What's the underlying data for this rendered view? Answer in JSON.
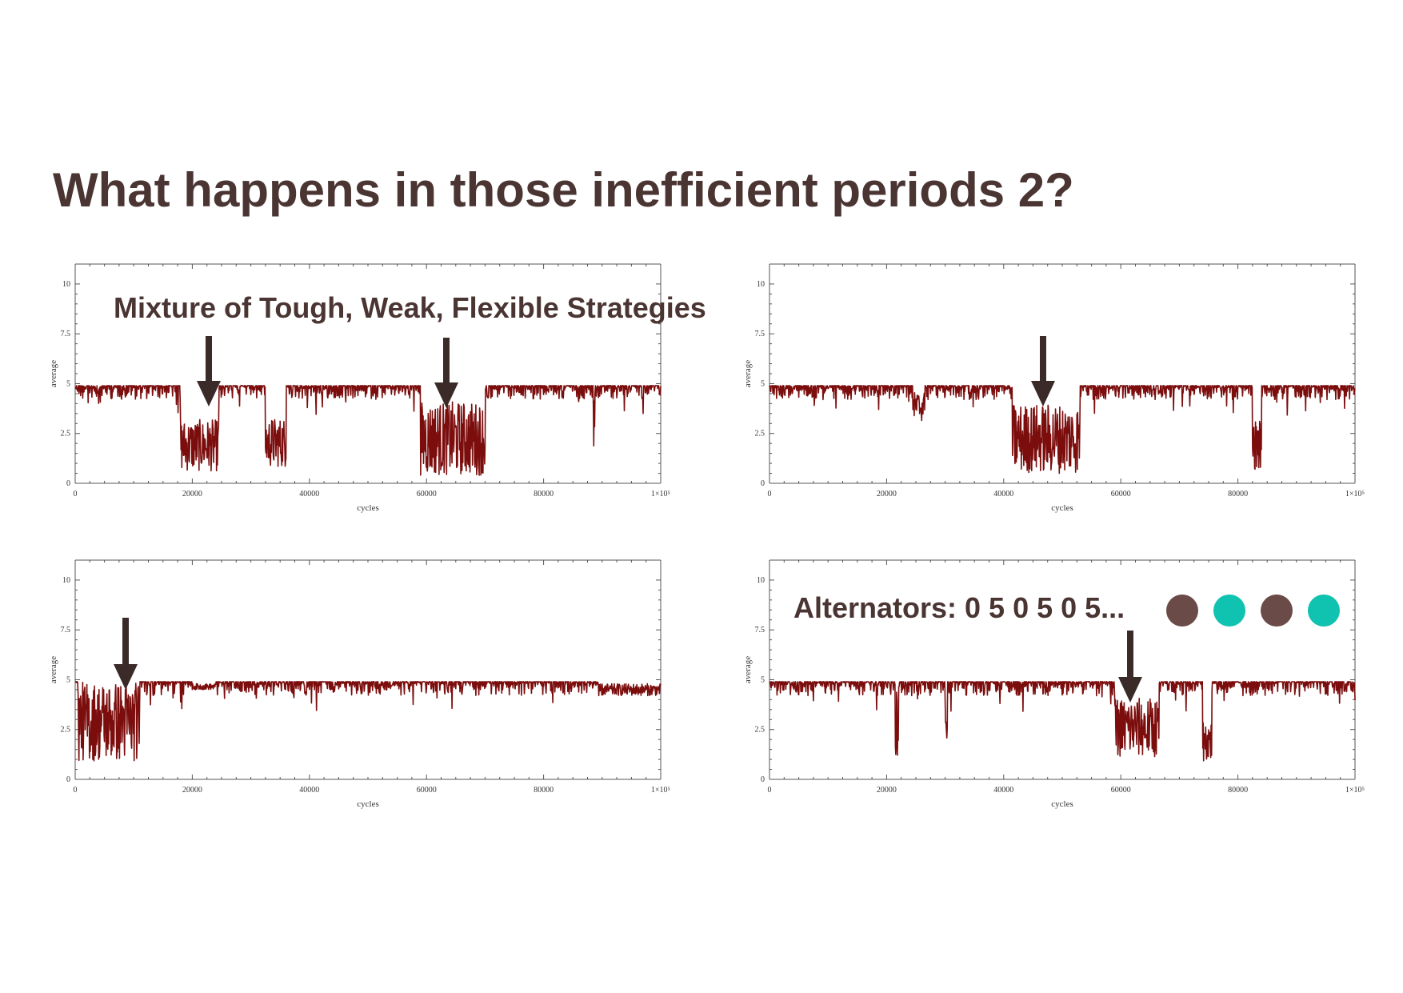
{
  "title": "What happens in those inefficient periods 2?",
  "colors": {
    "series": "#7b0d0d",
    "title": "#4a3533",
    "arrow": "#3a2a28",
    "dot_brown": "#6b4b47",
    "dot_teal": "#10c2b0"
  },
  "annotations": {
    "top_left": "Mixture of Tough, Weak, Flexible Strategies",
    "bottom_right": "Alternators: 0 5 0 5 0 5..."
  },
  "legend_dots": [
    "dot_brown",
    "dot_teal",
    "dot_brown",
    "dot_teal"
  ],
  "chart_data": [
    {
      "type": "line",
      "xlabel": "cycles",
      "ylabel": "average",
      "xlim": [
        0,
        100000
      ],
      "ylim": [
        0,
        11
      ],
      "x_ticks": [
        "0",
        "20000",
        "40000",
        "60000",
        "80000",
        "1×10⁵"
      ],
      "y_ticks": [
        "0",
        "2.5",
        "5",
        "7.5",
        "10"
      ],
      "series": [
        {
          "baseline": 4.9,
          "segments": [
            {
              "x": [
                18000,
                24500
              ],
              "low": 0.6,
              "high": 3.2
            },
            {
              "x": [
                32500,
                36000
              ],
              "low": 0.8,
              "high": 3.3
            },
            {
              "x": [
                59000,
                70000
              ],
              "low": 0.4,
              "high": 4.1
            },
            {
              "x": [
                88500,
                88800
              ],
              "low": 1.7,
              "high": 4.9
            }
          ]
        }
      ]
    },
    {
      "type": "line",
      "xlabel": "cycles",
      "ylabel": "average",
      "xlim": [
        0,
        100000
      ],
      "ylim": [
        0,
        11
      ],
      "x_ticks": [
        "0",
        "20000",
        "40000",
        "60000",
        "80000",
        "1×10⁵"
      ],
      "y_ticks": [
        "0",
        "2.5",
        "5",
        "7.5",
        "10"
      ],
      "series": [
        {
          "baseline": 4.9,
          "segments": [
            {
              "x": [
                24500,
                26500
              ],
              "low": 3.1,
              "high": 4.6
            },
            {
              "x": [
                41500,
                53000
              ],
              "low": 0.5,
              "high": 4.0
            },
            {
              "x": [
                82500,
                84000
              ],
              "low": 0.7,
              "high": 3.2
            }
          ]
        }
      ]
    },
    {
      "type": "line",
      "xlabel": "cycles",
      "ylabel": "average",
      "xlim": [
        0,
        100000
      ],
      "ylim": [
        0,
        11
      ],
      "x_ticks": [
        "0",
        "20000",
        "40000",
        "60000",
        "80000",
        "1×10⁵"
      ],
      "y_ticks": [
        "0",
        "2.5",
        "5",
        "7.5",
        "10"
      ],
      "series": [
        {
          "baseline": 4.9,
          "segments": [
            {
              "x": [
                500,
                11000
              ],
              "low": 0.9,
              "high": 4.9
            },
            {
              "x": [
                20000,
                24000
              ],
              "low": 4.5,
              "high": 4.8
            },
            {
              "x": [
                89500,
                100000
              ],
              "low": 4.2,
              "high": 4.8
            }
          ]
        }
      ]
    },
    {
      "type": "line",
      "xlabel": "cycles",
      "ylabel": "average",
      "xlim": [
        0,
        100000
      ],
      "ylim": [
        0,
        11
      ],
      "x_ticks": [
        "0",
        "20000",
        "40000",
        "60000",
        "80000",
        "1×10⁵"
      ],
      "y_ticks": [
        "0",
        "2.5",
        "5",
        "7.5",
        "10"
      ],
      "series": [
        {
          "baseline": 4.9,
          "segments": [
            {
              "x": [
                21500,
                22000
              ],
              "low": 1.1,
              "high": 4.8
            },
            {
              "x": [
                30000,
                30400
              ],
              "low": 1.8,
              "high": 4.8
            },
            {
              "x": [
                59000,
                66500
              ],
              "low": 1.1,
              "high": 4.1
            },
            {
              "x": [
                74000,
                75500
              ],
              "low": 0.9,
              "high": 3.0
            }
          ]
        }
      ]
    }
  ]
}
